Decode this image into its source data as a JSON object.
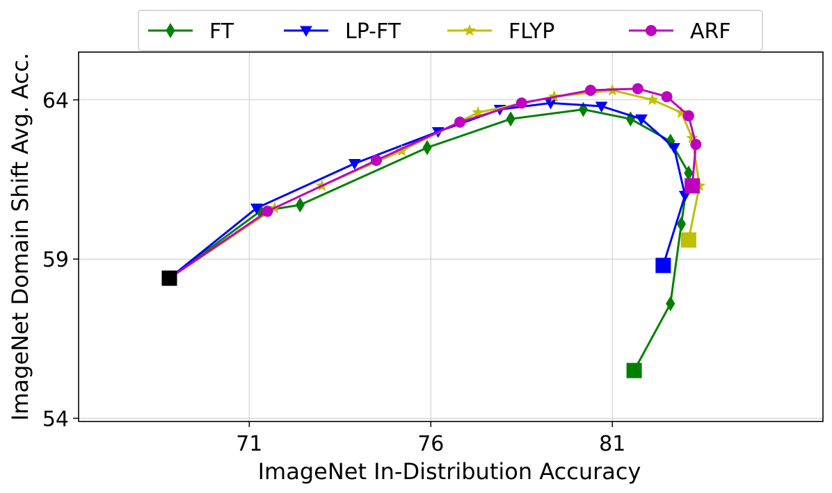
{
  "chart_data": {
    "type": "line",
    "title": "",
    "xlabel": "ImageNet In-Distribution Accuracy",
    "ylabel": "ImageNet Domain Shift Avg. Acc.",
    "xlim": [
      66.3,
      86.8
    ],
    "ylim": [
      53.9,
      65.5
    ],
    "xticks": [
      71,
      76,
      81
    ],
    "yticks": [
      54,
      59,
      64
    ],
    "grid": true,
    "legend_position": "top-center",
    "series": [
      {
        "name": "FT",
        "color": "#008000",
        "marker": "diamond",
        "points": [
          [
            68.8,
            58.4
          ],
          [
            71.3,
            60.5
          ],
          [
            72.4,
            60.7
          ],
          [
            75.9,
            62.5
          ],
          [
            78.2,
            63.4
          ],
          [
            80.2,
            63.7
          ],
          [
            81.5,
            63.4
          ],
          [
            82.6,
            62.7
          ],
          [
            83.1,
            61.7
          ],
          [
            82.9,
            60.1
          ],
          [
            82.6,
            57.6
          ],
          [
            81.6,
            55.5
          ]
        ],
        "start": [
          68.8,
          58.4
        ],
        "end": [
          81.6,
          55.5
        ]
      },
      {
        "name": "LP-FT",
        "color": "#0000ff",
        "marker": "triangle-down",
        "points": [
          [
            68.8,
            58.4
          ],
          [
            71.2,
            60.6
          ],
          [
            73.9,
            62.0
          ],
          [
            76.2,
            63.0
          ],
          [
            77.9,
            63.7
          ],
          [
            79.3,
            63.9
          ],
          [
            80.7,
            63.8
          ],
          [
            81.8,
            63.4
          ],
          [
            82.7,
            62.5
          ],
          [
            83.0,
            61.0
          ],
          [
            82.4,
            58.8
          ]
        ],
        "start": [
          68.8,
          58.4
        ],
        "end": [
          82.4,
          58.8
        ]
      },
      {
        "name": "FLYP",
        "color": "#bfbf00",
        "marker": "star",
        "points": [
          [
            68.8,
            58.4
          ],
          [
            71.7,
            60.6
          ],
          [
            73.0,
            61.3
          ],
          [
            75.2,
            62.4
          ],
          [
            77.3,
            63.6
          ],
          [
            79.4,
            64.1
          ],
          [
            81.0,
            64.3
          ],
          [
            82.1,
            64.0
          ],
          [
            82.9,
            63.6
          ],
          [
            83.2,
            62.8
          ],
          [
            83.4,
            61.3
          ],
          [
            83.1,
            59.6
          ]
        ],
        "start": [
          68.8,
          58.4
        ],
        "end": [
          83.1,
          59.6
        ]
      },
      {
        "name": "ARF",
        "color": "#bf00bf",
        "marker": "circle",
        "points": [
          [
            68.8,
            58.4
          ],
          [
            71.5,
            60.5
          ],
          [
            74.5,
            62.1
          ],
          [
            76.8,
            63.3
          ],
          [
            78.5,
            63.9
          ],
          [
            80.4,
            64.3
          ],
          [
            81.7,
            64.35
          ],
          [
            82.5,
            64.1
          ],
          [
            83.1,
            63.5
          ],
          [
            83.3,
            62.6
          ],
          [
            83.2,
            61.3
          ]
        ],
        "start": [
          68.8,
          58.4
        ],
        "end": [
          83.2,
          61.3
        ]
      }
    ]
  }
}
